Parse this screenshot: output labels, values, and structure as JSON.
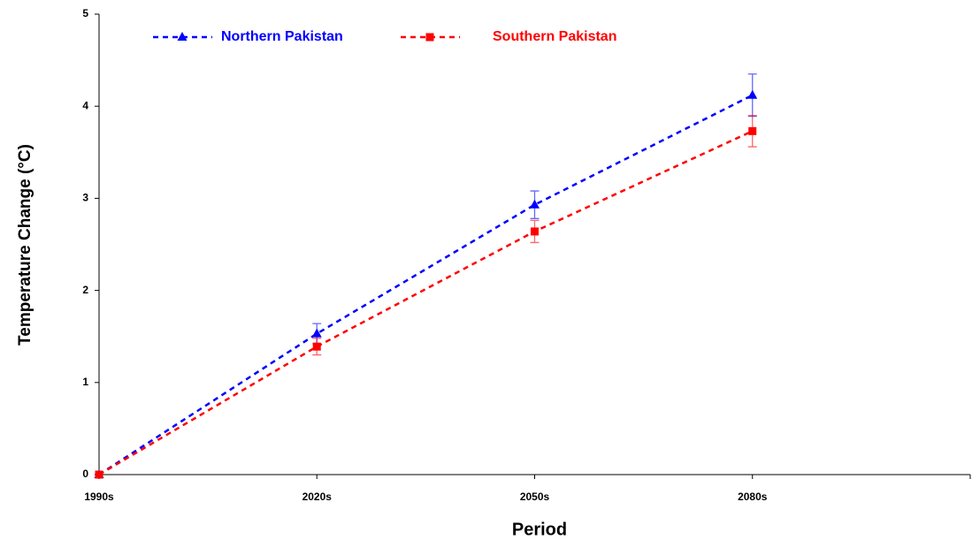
{
  "chart_data": {
    "type": "line",
    "categories": [
      "1990s",
      "2020s",
      "2050s",
      "2080s",
      null
    ],
    "series": [
      {
        "name": "Northern Pakistan",
        "color": "#0000ff",
        "marker": "triangle",
        "values": [
          0,
          1.53,
          2.93,
          4.12,
          null
        ],
        "errors": [
          null,
          0.11,
          0.15,
          0.23,
          null
        ]
      },
      {
        "name": "Southern Pakistan",
        "color": "#ff0000",
        "marker": "square",
        "values": [
          0,
          1.39,
          2.64,
          3.73,
          null
        ],
        "errors": [
          null,
          0.09,
          0.12,
          0.17,
          null
        ]
      }
    ],
    "ylabel": "Temperature Change (°C)",
    "xlabel": "Period",
    "ylim": [
      0,
      5
    ],
    "yticks": [
      0,
      1,
      2,
      3,
      4,
      5
    ],
    "grid": false,
    "legend": "top"
  }
}
